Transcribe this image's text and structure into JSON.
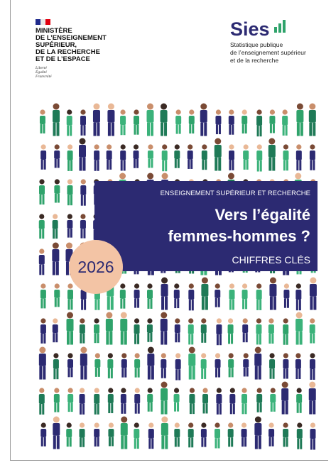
{
  "header": {
    "ministry": [
      "MINISTÈRE",
      "DE L’ENSEIGNEMENT",
      "SUPÉRIEUR,",
      "DE LA RECHERCHE",
      "ET DE L’ESPACE"
    ],
    "motto": [
      "Liberté",
      "Égalité",
      "Fraternité"
    ]
  },
  "logo": {
    "name": "Sies",
    "tagline": [
      "Statistique publique",
      "de l’enseignement supérieur",
      "et de la recherche"
    ]
  },
  "banner": {
    "kicker": "ENSEIGNEMENT SUPÉRIEUR ET RECHERCHE",
    "title": [
      "Vers l’égalité",
      "femmes-hommes ?"
    ],
    "subtitle": "CHIFFRES CLÉS"
  },
  "year": "2026"
}
